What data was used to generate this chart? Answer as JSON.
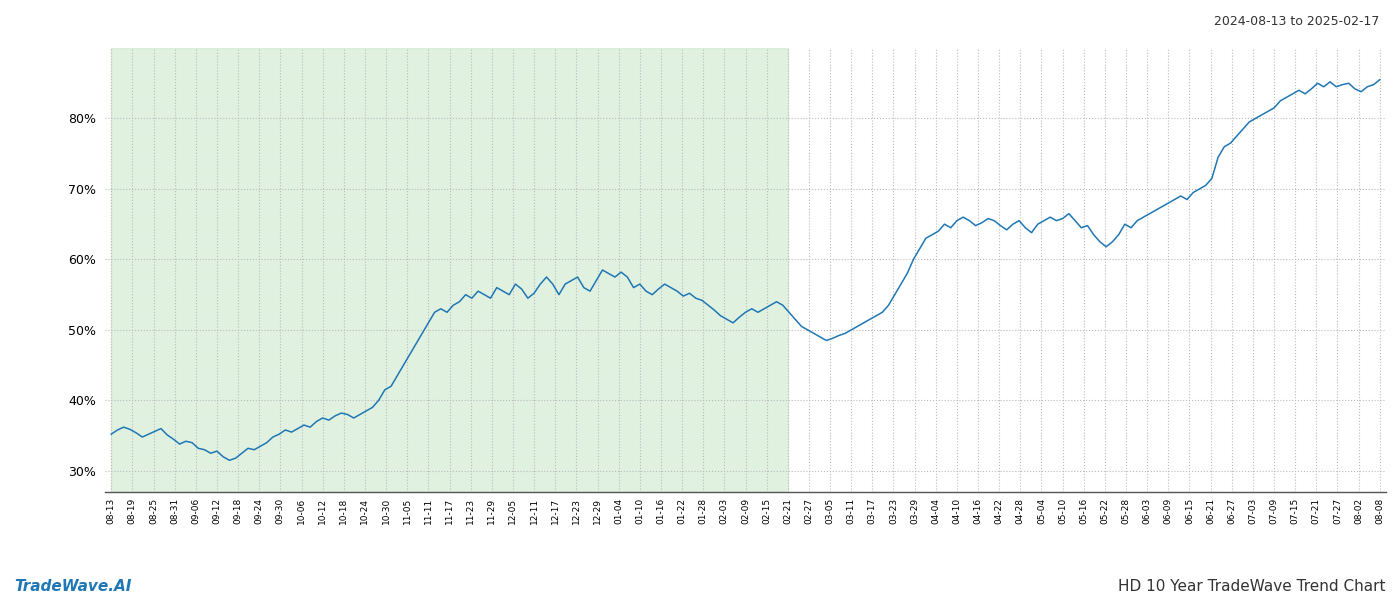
{
  "title_right": "2024-08-13 to 2025-02-17",
  "footer_left": "TradeWave.AI",
  "footer_right": "HD 10 Year TradeWave Trend Chart",
  "line_color": "#1f77b4",
  "line_width": 1.1,
  "shaded_region_color": "#c8e6c8",
  "shaded_region_alpha": 0.55,
  "bg_color": "#ffffff",
  "grid_color": "#bbbbbb",
  "grid_style": ":",
  "ylim": [
    27,
    90
  ],
  "yticks": [
    30,
    40,
    50,
    60,
    70,
    80
  ],
  "x_labels": [
    "08-13",
    "08-19",
    "08-25",
    "08-31",
    "09-06",
    "09-12",
    "09-18",
    "09-24",
    "09-30",
    "10-06",
    "10-12",
    "10-18",
    "10-24",
    "10-30",
    "11-05",
    "11-11",
    "11-17",
    "11-23",
    "11-29",
    "12-05",
    "12-11",
    "12-17",
    "12-23",
    "12-29",
    "01-04",
    "01-10",
    "01-16",
    "01-22",
    "01-28",
    "02-03",
    "02-09",
    "02-15",
    "02-21",
    "02-27",
    "03-05",
    "03-11",
    "03-17",
    "03-23",
    "03-29",
    "04-04",
    "04-10",
    "04-16",
    "04-22",
    "04-28",
    "05-04",
    "05-10",
    "05-16",
    "05-22",
    "05-28",
    "06-03",
    "06-09",
    "06-15",
    "06-21",
    "06-27",
    "07-03",
    "07-09",
    "07-15",
    "07-21",
    "07-27",
    "08-02",
    "08-08"
  ],
  "shaded_label_start": "08-13",
  "shaded_label_end": "02-21",
  "values": [
    35.2,
    35.8,
    36.2,
    35.9,
    35.4,
    34.8,
    35.2,
    35.6,
    36.0,
    35.1,
    34.5,
    33.8,
    34.2,
    34.0,
    33.2,
    33.0,
    32.5,
    32.8,
    32.0,
    31.5,
    31.8,
    32.5,
    33.2,
    33.0,
    33.5,
    34.0,
    34.8,
    35.2,
    35.8,
    35.5,
    36.0,
    36.5,
    36.2,
    37.0,
    37.5,
    37.2,
    37.8,
    38.2,
    38.0,
    37.5,
    38.0,
    38.5,
    39.0,
    40.0,
    41.5,
    42.0,
    43.5,
    45.0,
    46.5,
    48.0,
    49.5,
    51.0,
    52.5,
    53.0,
    52.5,
    53.5,
    54.0,
    55.0,
    54.5,
    55.5,
    55.0,
    54.5,
    56.0,
    55.5,
    55.0,
    56.5,
    55.8,
    54.5,
    55.2,
    56.5,
    57.5,
    56.5,
    55.0,
    56.5,
    57.0,
    57.5,
    56.0,
    55.5,
    57.0,
    58.5,
    58.0,
    57.5,
    58.2,
    57.5,
    56.0,
    56.5,
    55.5,
    55.0,
    55.8,
    56.5,
    56.0,
    55.5,
    54.8,
    55.2,
    54.5,
    54.2,
    53.5,
    52.8,
    52.0,
    51.5,
    51.0,
    51.8,
    52.5,
    53.0,
    52.5,
    53.0,
    53.5,
    54.0,
    53.5,
    52.5,
    51.5,
    50.5,
    50.0,
    49.5,
    49.0,
    48.5,
    48.8,
    49.2,
    49.5,
    50.0,
    50.5,
    51.0,
    51.5,
    52.0,
    52.5,
    53.5,
    55.0,
    56.5,
    58.0,
    60.0,
    61.5,
    63.0,
    63.5,
    64.0,
    65.0,
    64.5,
    65.5,
    66.0,
    65.5,
    64.8,
    65.2,
    65.8,
    65.5,
    64.8,
    64.2,
    65.0,
    65.5,
    64.5,
    63.8,
    65.0,
    65.5,
    66.0,
    65.5,
    65.8,
    66.5,
    65.5,
    64.5,
    64.8,
    63.5,
    62.5,
    61.8,
    62.5,
    63.5,
    65.0,
    64.5,
    65.5,
    66.0,
    66.5,
    67.0,
    67.5,
    68.0,
    68.5,
    69.0,
    68.5,
    69.5,
    70.0,
    70.5,
    71.5,
    74.5,
    76.0,
    76.5,
    77.5,
    78.5,
    79.5,
    80.0,
    80.5,
    81.0,
    81.5,
    82.5,
    83.0,
    83.5,
    84.0,
    83.5,
    84.2,
    85.0,
    84.5,
    85.2,
    84.5,
    84.8,
    85.0,
    84.2,
    83.8,
    84.5,
    84.8,
    85.5
  ]
}
